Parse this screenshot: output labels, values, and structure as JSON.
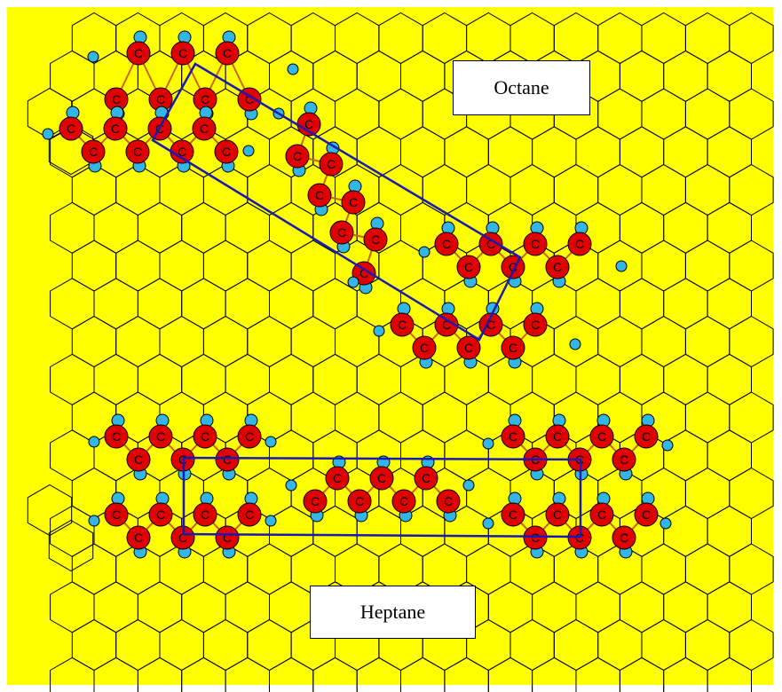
{
  "labels": {
    "octane": "Octane",
    "heptane": "Heptane"
  },
  "atom_label": "C",
  "colors": {
    "background": "#ffff00",
    "grid_line": "#000000",
    "carbon": "#e00000",
    "hydrogen": "#33b5e5",
    "bond": "#cc6600",
    "cell_outline": "#1a1ab0"
  }
}
